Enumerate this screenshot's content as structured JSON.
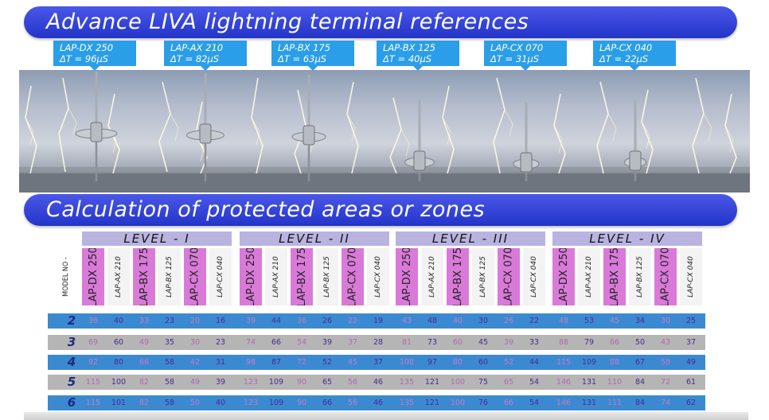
{
  "title": "Advance LIVA lightning terminal references",
  "subtitle": "Calculation of protected areas or zones",
  "terminals": [
    {
      "model": "LAP-DX 250",
      "delta": "ΔT = 96µS"
    },
    {
      "model": "LAP-AX 210",
      "delta": "ΔT = 82µS"
    },
    {
      "model": "LAP-BX 175",
      "delta": "ΔT = 63µS"
    },
    {
      "model": "LAP-BX 125",
      "delta": "ΔT = 40µS"
    },
    {
      "model": "LAP-CX 070",
      "delta": "ΔT = 31µS"
    },
    {
      "model": "LAP-CX 040",
      "delta": "ΔT = 22µS"
    }
  ],
  "table": {
    "model_header": "MODEL NO -",
    "levels": [
      "LEVEL - I",
      "LEVEL - II",
      "LEVEL - III",
      "LEVEL - IV"
    ],
    "models": [
      "LAP-DX 250",
      "LAP-AX 210",
      "LAP-BX 175",
      "LAP-BX 125",
      "LAP-CX 070",
      "LAP-CX 040"
    ],
    "rows": [
      {
        "label": "2",
        "values": [
          [
            "36",
            "40",
            "33",
            "23",
            "20",
            "16"
          ],
          [
            "39",
            "44",
            "36",
            "26",
            "22",
            "19"
          ],
          [
            "43",
            "48",
            "40",
            "30",
            "26",
            "22"
          ],
          [
            "48",
            "53",
            "45",
            "34",
            "30",
            "25"
          ]
        ]
      },
      {
        "label": "3",
        "values": [
          [
            "69",
            "60",
            "49",
            "35",
            "30",
            "23"
          ],
          [
            "74",
            "66",
            "54",
            "39",
            "37",
            "28"
          ],
          [
            "81",
            "73",
            "60",
            "45",
            "39",
            "33"
          ],
          [
            "88",
            "79",
            "66",
            "50",
            "43",
            "37"
          ]
        ]
      },
      {
        "label": "4",
        "values": [
          [
            "92",
            "80",
            "66",
            "58",
            "42",
            "31"
          ],
          [
            "98",
            "87",
            "72",
            "52",
            "45",
            "37"
          ],
          [
            "108",
            "97",
            "80",
            "60",
            "52",
            "44"
          ],
          [
            "115",
            "109",
            "88",
            "67",
            "58",
            "49"
          ]
        ]
      },
      {
        "label": "5",
        "values": [
          [
            "115",
            "100",
            "82",
            "58",
            "49",
            "39"
          ],
          [
            "123",
            "109",
            "90",
            "65",
            "56",
            "46"
          ],
          [
            "135",
            "121",
            "100",
            "75",
            "65",
            "54"
          ],
          [
            "146",
            "131",
            "110",
            "84",
            "72",
            "61"
          ]
        ]
      },
      {
        "label": "6",
        "values": [
          [
            "115",
            "101",
            "82",
            "58",
            "50",
            "40"
          ],
          [
            "123",
            "109",
            "90",
            "66",
            "56",
            "46"
          ],
          [
            "135",
            "121",
            "100",
            "76",
            "66",
            "54"
          ],
          [
            "146",
            "131",
            "111",
            "84",
            "74",
            "62"
          ]
        ]
      }
    ]
  },
  "colors": {
    "banner": "#2334c9",
    "tag": "#2a9ee8",
    "level_header": "#b9b3e0",
    "highlight_model": "#d97ad9",
    "row_blue": "#3b8ad1",
    "row_gray": "#b5b5b5"
  }
}
